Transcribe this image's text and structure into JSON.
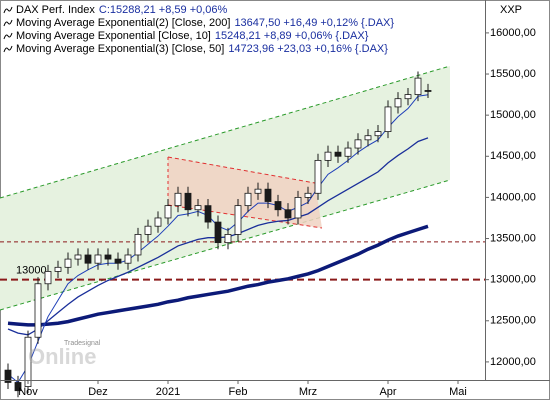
{
  "chart_data": {
    "type": "candlestick",
    "symbol": "XXP",
    "name": "DAX Perf. Index",
    "legend_info": "C:15288,21 +8,59 +0,06%",
    "watermark": {
      "top": "Tradesignal",
      "main": "Online"
    },
    "up_color": "#ffffff",
    "down_color": "#1a1a1a",
    "categories": [
      null,
      null,
      "Nov",
      null,
      null,
      null,
      null,
      null,
      null,
      "Dez",
      null,
      null,
      null,
      null,
      null,
      null,
      "2021",
      null,
      null,
      null,
      null,
      null,
      null,
      "Feb",
      null,
      null,
      null,
      null,
      null,
      null,
      "Mrz",
      null,
      null,
      null,
      null,
      null,
      null,
      null,
      "Apr",
      null,
      null,
      null,
      null,
      null,
      null,
      "Mai"
    ],
    "open": [
      11900,
      11750,
      11700,
      12300,
      12950,
      13100,
      13150,
      13250,
      13300,
      13200,
      13300,
      13250,
      13200,
      13300,
      13550,
      13650,
      13750,
      13900,
      14050,
      13850,
      13900,
      13700,
      13450,
      13550,
      13900,
      14050,
      14100,
      13950,
      13850,
      13750,
      14000,
      14050,
      14450,
      14550,
      14500,
      14600,
      14700,
      14750,
      14800,
      15100,
      15200,
      15250,
      15300,
      null,
      null,
      null
    ],
    "high": [
      11980,
      11830,
      12380,
      13030,
      13180,
      13230,
      13330,
      13380,
      13380,
      13380,
      13380,
      13330,
      13380,
      13630,
      13730,
      13830,
      13980,
      14130,
      14130,
      13980,
      13980,
      13780,
      13630,
      13980,
      14130,
      14180,
      14180,
      14030,
      13930,
      14080,
      14130,
      14530,
      14630,
      14630,
      14680,
      14780,
      14830,
      14880,
      15180,
      15280,
      15330,
      15530,
      15380,
      null,
      null,
      null
    ],
    "low": [
      11670,
      11570,
      11620,
      12220,
      12870,
      13020,
      13070,
      13170,
      13120,
      13120,
      13170,
      13120,
      13120,
      13220,
      13470,
      13570,
      13670,
      13820,
      13770,
      13770,
      13620,
      13370,
      13370,
      13470,
      13820,
      13970,
      13870,
      13770,
      13670,
      13670,
      13920,
      13970,
      14370,
      14420,
      14420,
      14520,
      14620,
      14670,
      14720,
      15020,
      15120,
      15170,
      15208,
      null,
      null,
      null
    ],
    "close": [
      11750,
      11650,
      12300,
      12950,
      13100,
      13150,
      13250,
      13300,
      13200,
      13300,
      13250,
      13200,
      13300,
      13550,
      13650,
      13750,
      13900,
      14050,
      13850,
      13900,
      13700,
      13450,
      13550,
      13900,
      14050,
      14100,
      13950,
      13850,
      13750,
      14000,
      14050,
      14450,
      14550,
      14500,
      14600,
      14700,
      14750,
      14800,
      15100,
      15200,
      15250,
      15450,
      15288,
      null,
      null,
      null
    ],
    "series": [
      {
        "name": "Moving Average Exponential(2) [Close, 200]",
        "info": "13647,50 +16,49 +0,12% {.DAX}",
        "color": "#0c1a78",
        "width": 3.5,
        "values": [
          12470,
          12460,
          12450,
          12450,
          12460,
          12470,
          12490,
          12520,
          12550,
          12580,
          12600,
          12620,
          12640,
          12660,
          12680,
          12700,
          12730,
          12750,
          12780,
          12800,
          12820,
          12840,
          12860,
          12890,
          12920,
          12940,
          12970,
          12990,
          13010,
          13040,
          13070,
          13110,
          13160,
          13210,
          13260,
          13310,
          13370,
          13420,
          13480,
          13530,
          13570,
          13610,
          13648,
          null,
          null,
          null
        ]
      },
      {
        "name": "Moving Average Exponential [Close, 10]",
        "info": "15248,21 +8,89 +0,06% {.DAX}",
        "color": "#1f3fb8",
        "width": 1,
        "values": [
          11850,
          11750,
          11950,
          12250,
          12550,
          12750,
          12950,
          13050,
          13120,
          13180,
          13200,
          13200,
          13240,
          13330,
          13430,
          13530,
          13650,
          13780,
          13800,
          13830,
          13780,
          13650,
          13600,
          13700,
          13830,
          13930,
          13930,
          13900,
          13830,
          13880,
          13940,
          14120,
          14280,
          14360,
          14450,
          14550,
          14630,
          14700,
          14850,
          14980,
          15080,
          15230,
          15248,
          null,
          null,
          null
        ]
      },
      {
        "name": "Moving Average Exponential(3) [Close, 50]",
        "info": "14723,96 +23,03 +0,16% {.DAX}",
        "color": "#1a2f9a",
        "width": 1.3,
        "values": [
          12400,
          12350,
          12330,
          12400,
          12500,
          12600,
          12700,
          12790,
          12860,
          12930,
          12990,
          13040,
          13090,
          13150,
          13210,
          13270,
          13340,
          13410,
          13450,
          13490,
          13510,
          13510,
          13520,
          13560,
          13610,
          13660,
          13690,
          13710,
          13720,
          13760,
          13800,
          13880,
          13960,
          14030,
          14100,
          14170,
          14240,
          14310,
          14420,
          14510,
          14590,
          14680,
          14724,
          null,
          null,
          null
        ]
      }
    ],
    "hlines": [
      13460,
      13000
    ],
    "ylim": [
      11780,
      16400
    ],
    "yticks": [
      {
        "value": 12000,
        "label": "12000,00"
      },
      {
        "value": 12500,
        "label": "12500,00"
      },
      {
        "value": 13000,
        "label": "13000,00"
      },
      {
        "value": 13500,
        "label": "13500,00"
      },
      {
        "value": 14000,
        "label": "14000,00"
      },
      {
        "value": 14500,
        "label": "14500,00"
      },
      {
        "value": 15000,
        "label": "15000,00"
      },
      {
        "value": 15500,
        "label": "15500,00"
      },
      {
        "value": 16000,
        "label": "16000,00"
      }
    ]
  }
}
